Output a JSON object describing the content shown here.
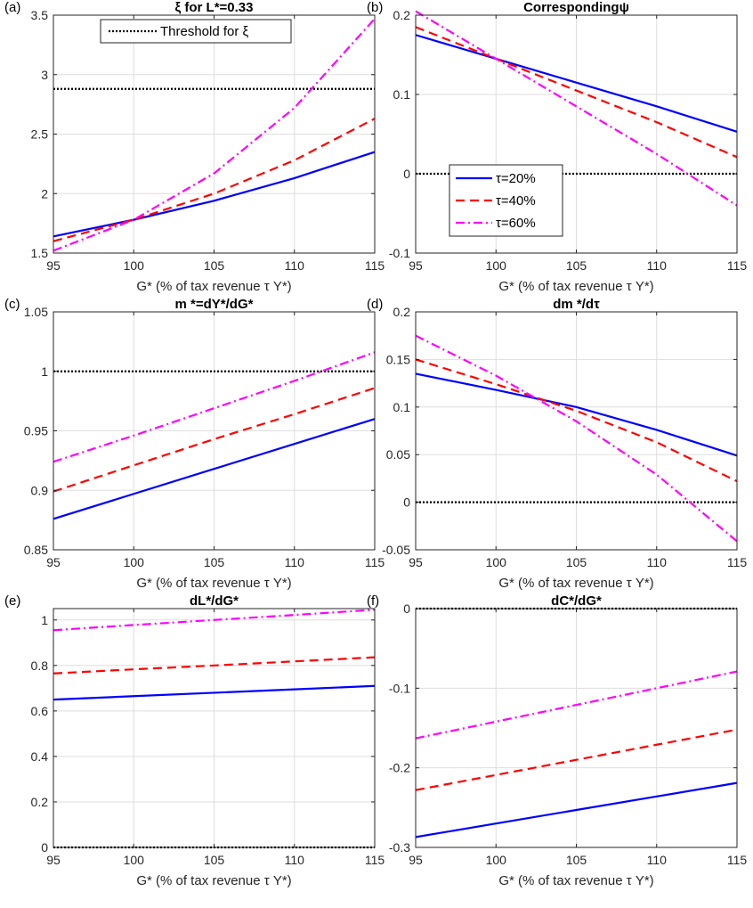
{
  "chart_data": [
    {
      "panel": "(a)",
      "type": "line",
      "title": "ξ for L*=0.33",
      "xlabel": "G* (% of tax revenue τ Y*)",
      "ylabel": "",
      "xlim": [
        95,
        115
      ],
      "ylim": [
        1.5,
        3.5
      ],
      "xticks": [
        "95",
        "100",
        "105",
        "110",
        "115"
      ],
      "yticks": [
        "1.5",
        "2",
        "2.5",
        "3",
        "3.5"
      ],
      "grid": true,
      "legend": {
        "placement": "top",
        "entries": [
          "Threshold for ξ"
        ]
      },
      "x": [
        95,
        100,
        105,
        110,
        115
      ],
      "series": [
        {
          "name": "Threshold for ξ",
          "color": "#000000",
          "style": "dotted",
          "values": [
            2.88,
            2.88,
            2.88,
            2.88,
            2.88
          ]
        },
        {
          "name": "τ=20%",
          "color": "#0000ff",
          "style": "solid",
          "values": [
            1.64,
            1.78,
            1.94,
            2.13,
            2.35
          ]
        },
        {
          "name": "τ=40%",
          "color": "#ff0000",
          "style": "dashed",
          "values": [
            1.6,
            1.78,
            2.0,
            2.28,
            2.63
          ]
        },
        {
          "name": "τ=60%",
          "color": "#ff00ff",
          "style": "dashdot",
          "values": [
            1.52,
            1.78,
            2.17,
            2.72,
            3.47
          ]
        }
      ]
    },
    {
      "panel": "(b)",
      "type": "line",
      "title": "Correspondingψ",
      "xlabel": "G* (% of tax revenue τ Y*)",
      "ylabel": "",
      "xlim": [
        95,
        115
      ],
      "ylim": [
        -0.1,
        0.2
      ],
      "xticks": [
        "95",
        "100",
        "105",
        "110",
        "115"
      ],
      "yticks": [
        "-0.1",
        "0",
        "0.1",
        "0.2"
      ],
      "grid": true,
      "legend": {
        "placement": "middle-left",
        "entries": [
          "τ=20%",
          "τ=40%",
          "τ=60%"
        ]
      },
      "x": [
        95,
        100,
        105,
        110,
        115
      ],
      "series": [
        {
          "name": "zero",
          "color": "#000000",
          "style": "dotted",
          "values": [
            0,
            0,
            0,
            0,
            0
          ]
        },
        {
          "name": "τ=20%",
          "color": "#0000ff",
          "style": "solid",
          "values": [
            0.175,
            0.145,
            0.115,
            0.085,
            0.053
          ]
        },
        {
          "name": "τ=40%",
          "color": "#ff0000",
          "style": "dashed",
          "values": [
            0.185,
            0.145,
            0.105,
            0.065,
            0.021
          ]
        },
        {
          "name": "τ=60%",
          "color": "#ff00ff",
          "style": "dashdot",
          "values": [
            0.205,
            0.145,
            0.085,
            0.025,
            -0.04
          ]
        }
      ]
    },
    {
      "panel": "(c)",
      "type": "line",
      "title": "m *=dY*/dG*",
      "xlabel": "G* (% of tax revenue τ Y*)",
      "ylabel": "",
      "xlim": [
        95,
        115
      ],
      "ylim": [
        0.85,
        1.05
      ],
      "xticks": [
        "95",
        "100",
        "105",
        "110",
        "115"
      ],
      "yticks": [
        "0.85",
        "0.9",
        "0.95",
        "1",
        "1.05"
      ],
      "grid": true,
      "x": [
        95,
        100,
        105,
        110,
        115
      ],
      "series": [
        {
          "name": "one",
          "color": "#000000",
          "style": "dotted",
          "values": [
            1,
            1,
            1,
            1,
            1
          ]
        },
        {
          "name": "τ=20%",
          "color": "#0000ff",
          "style": "solid",
          "values": [
            0.876,
            0.897,
            0.918,
            0.939,
            0.96
          ]
        },
        {
          "name": "τ=40%",
          "color": "#ff0000",
          "style": "dashed",
          "values": [
            0.899,
            0.921,
            0.943,
            0.964,
            0.986
          ]
        },
        {
          "name": "τ=60%",
          "color": "#ff00ff",
          "style": "dashdot",
          "values": [
            0.924,
            0.946,
            0.969,
            0.992,
            1.016
          ]
        }
      ]
    },
    {
      "panel": "(d)",
      "type": "line",
      "title": "dm */dτ",
      "xlabel": "G* (% of tax revenue τ Y*)",
      "ylabel": "",
      "xlim": [
        95,
        115
      ],
      "ylim": [
        -0.05,
        0.2
      ],
      "xticks": [
        "95",
        "100",
        "105",
        "110",
        "115"
      ],
      "yticks": [
        "-0.05",
        "0",
        "0.05",
        "0.1",
        "0.15",
        "0.2"
      ],
      "grid": true,
      "x": [
        95,
        100,
        105,
        110,
        115
      ],
      "series": [
        {
          "name": "zero",
          "color": "#000000",
          "style": "dotted",
          "values": [
            0,
            0,
            0,
            0,
            0
          ]
        },
        {
          "name": "τ=20%",
          "color": "#0000ff",
          "style": "solid",
          "values": [
            0.135,
            0.118,
            0.1,
            0.076,
            0.049
          ]
        },
        {
          "name": "τ=40%",
          "color": "#ff0000",
          "style": "dashed",
          "values": [
            0.15,
            0.124,
            0.096,
            0.063,
            0.022
          ]
        },
        {
          "name": "τ=60%",
          "color": "#ff00ff",
          "style": "dashdot",
          "values": [
            0.175,
            0.133,
            0.085,
            0.029,
            -0.041
          ]
        }
      ]
    },
    {
      "panel": "(e)",
      "type": "line",
      "title": "dL*/dG*",
      "xlabel": "G* (% of tax revenue τ Y*)",
      "ylabel": "",
      "xlim": [
        95,
        115
      ],
      "ylim": [
        0,
        1.05
      ],
      "xticks": [
        "95",
        "100",
        "105",
        "110",
        "115"
      ],
      "yticks": [
        "0",
        "0.2",
        "0.4",
        "0.6",
        "0.8",
        "1"
      ],
      "grid": true,
      "x": [
        95,
        100,
        105,
        110,
        115
      ],
      "series": [
        {
          "name": "zero",
          "color": "#000000",
          "style": "dotted",
          "values": [
            0,
            0,
            0,
            0,
            0
          ]
        },
        {
          "name": "τ=20%",
          "color": "#0000ff",
          "style": "solid",
          "values": [
            0.65,
            0.665,
            0.68,
            0.695,
            0.71
          ]
        },
        {
          "name": "τ=40%",
          "color": "#ff0000",
          "style": "dashed",
          "values": [
            0.765,
            0.783,
            0.8,
            0.818,
            0.836
          ]
        },
        {
          "name": "τ=60%",
          "color": "#ff00ff",
          "style": "dashdot",
          "values": [
            0.955,
            0.978,
            1.0,
            1.022,
            1.045
          ]
        }
      ]
    },
    {
      "panel": "(f)",
      "type": "line",
      "title": "dC*/dG*",
      "xlabel": "G* (% of tax revenue τ Y*)",
      "ylabel": "",
      "xlim": [
        95,
        115
      ],
      "ylim": [
        -0.3,
        0
      ],
      "xticks": [
        "95",
        "100",
        "105",
        "110",
        "115"
      ],
      "yticks": [
        "-0.3",
        "-0.2",
        "-0.1",
        "0"
      ],
      "grid": true,
      "x": [
        95,
        100,
        105,
        110,
        115
      ],
      "series": [
        {
          "name": "zero",
          "color": "#000000",
          "style": "dotted",
          "values": [
            0,
            0,
            0,
            0,
            0
          ]
        },
        {
          "name": "τ=20%",
          "color": "#0000ff",
          "style": "solid",
          "values": [
            -0.287,
            -0.27,
            -0.253,
            -0.236,
            -0.219
          ]
        },
        {
          "name": "τ=40%",
          "color": "#ff0000",
          "style": "dashed",
          "values": [
            -0.228,
            -0.209,
            -0.19,
            -0.171,
            -0.152
          ]
        },
        {
          "name": "τ=60%",
          "color": "#ff00ff",
          "style": "dashdot",
          "values": [
            -0.163,
            -0.142,
            -0.121,
            -0.1,
            -0.079
          ]
        }
      ]
    }
  ]
}
